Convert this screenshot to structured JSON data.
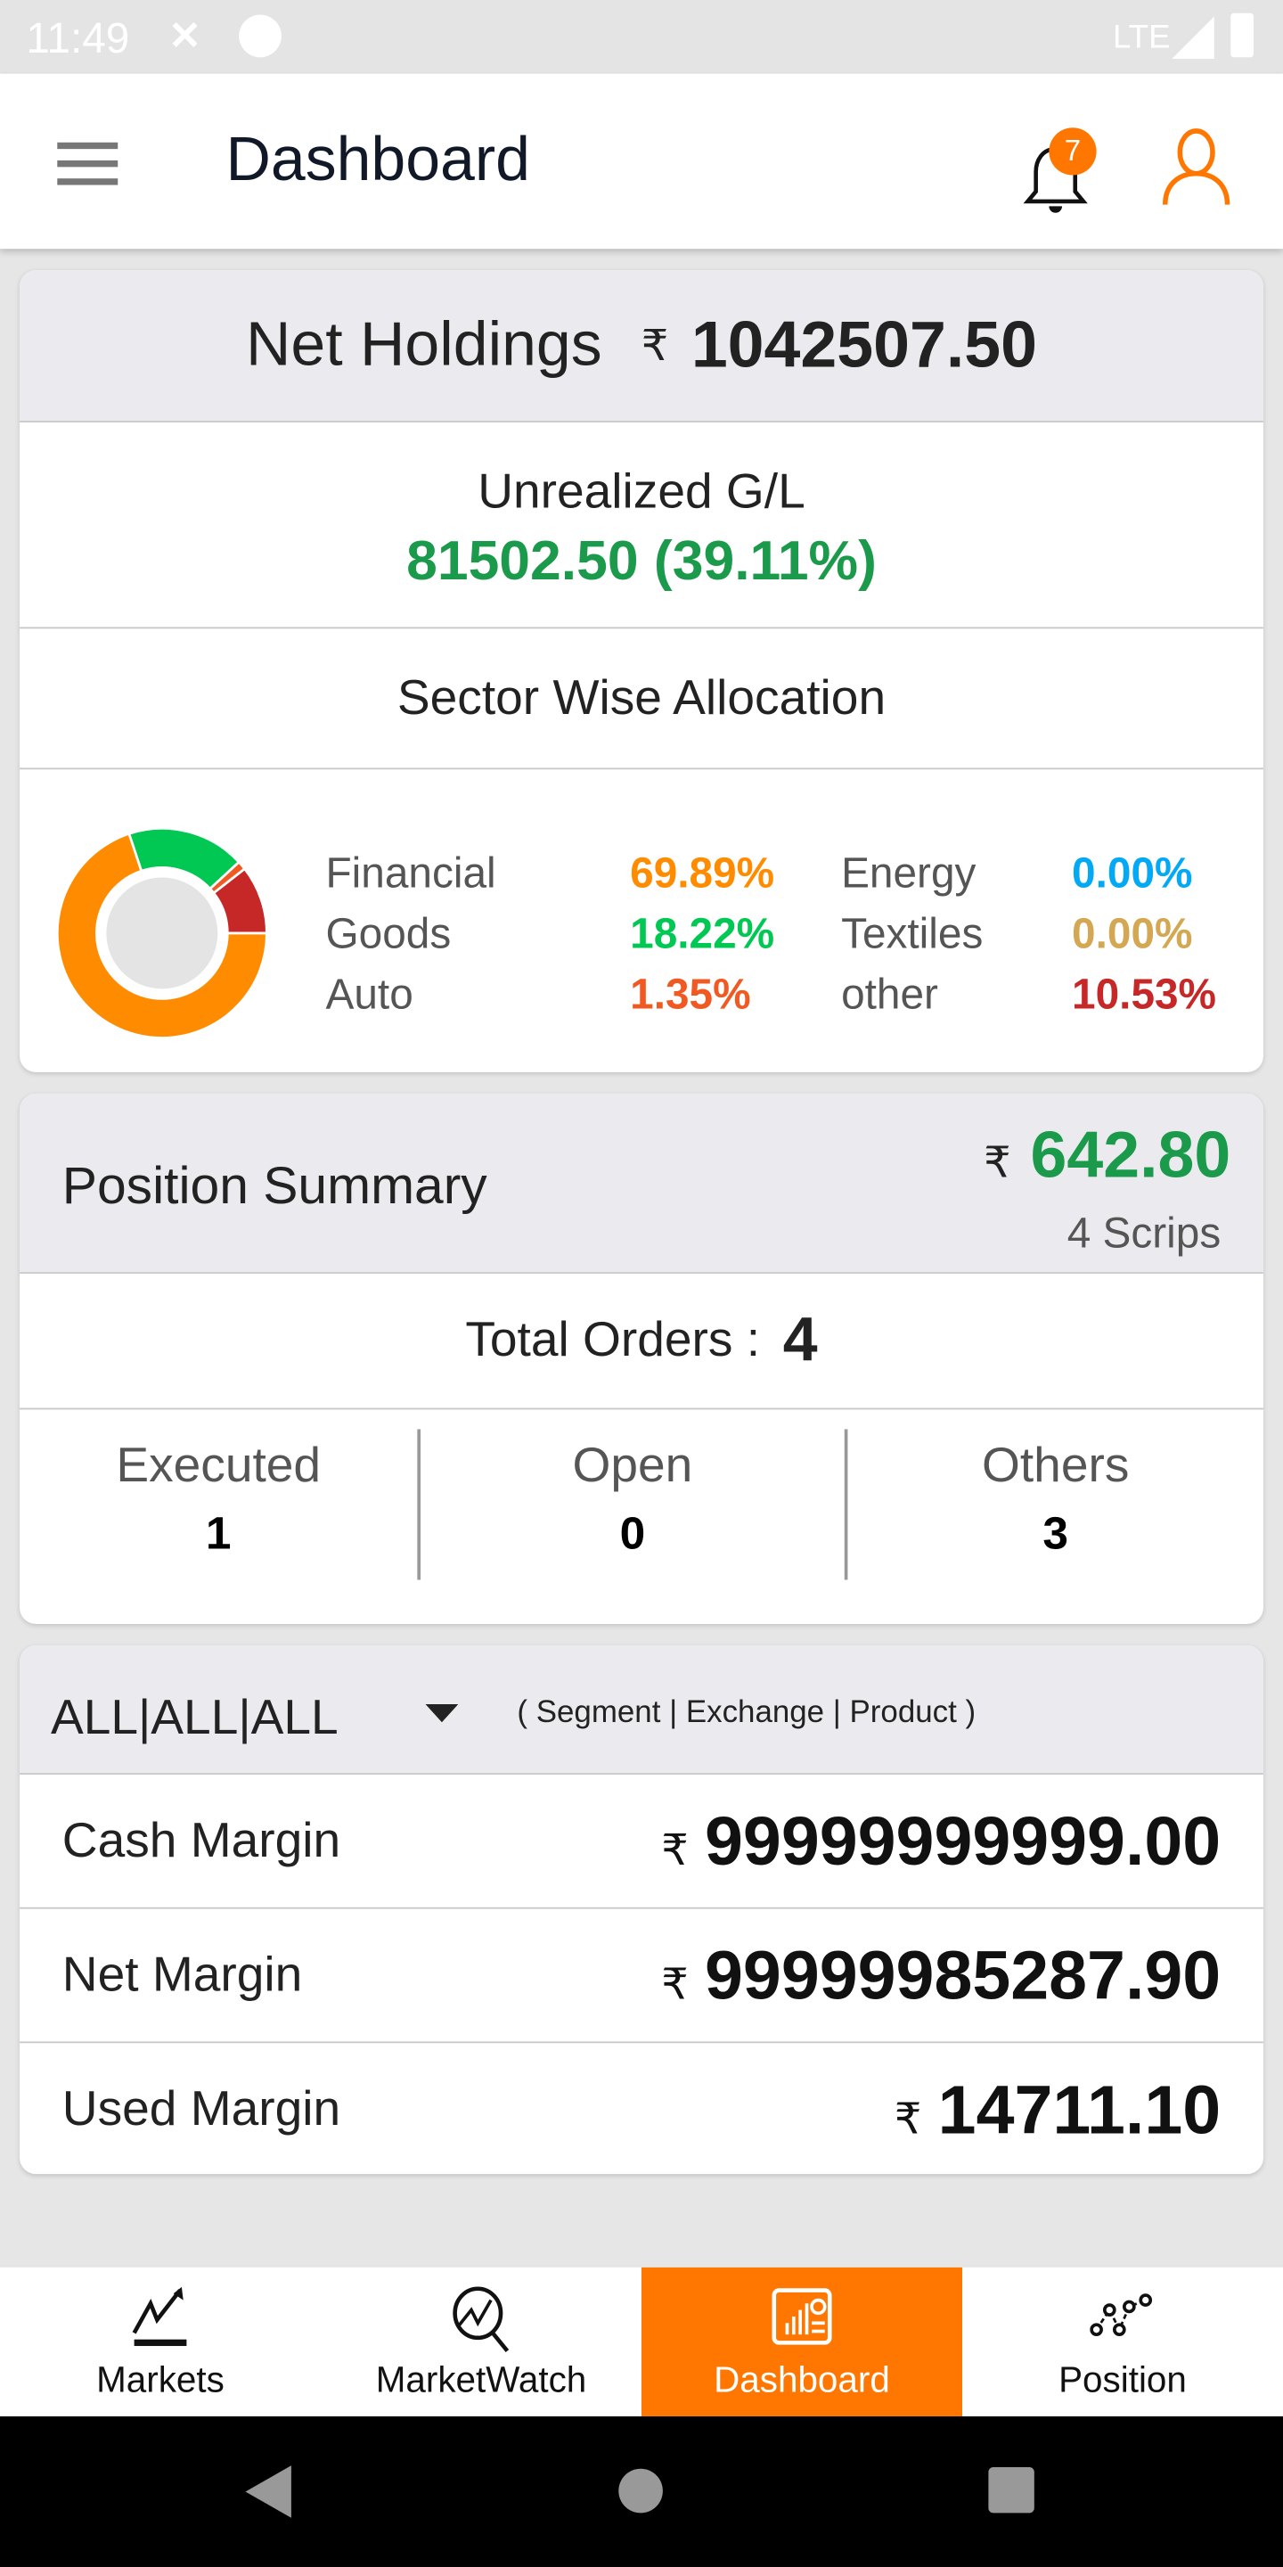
{
  "status_bar": {
    "time": "11:49",
    "network": "LTE"
  },
  "app_bar": {
    "title": "Dashboard",
    "notification_count": "7"
  },
  "holdings": {
    "label": "Net Holdings",
    "currency": "₹",
    "value": "1042507.50",
    "unrealized_label": "Unrealized G/L",
    "unrealized_value": "81502.50 (39.11%)",
    "sector_title": "Sector Wise Allocation",
    "sectors": [
      {
        "name": "Financial",
        "pct": "69.89%",
        "value": 69.89,
        "color": "#ff8c00"
      },
      {
        "name": "Goods",
        "pct": "18.22%",
        "value": 18.22,
        "color": "#00c853"
      },
      {
        "name": "Auto",
        "pct": "1.35%",
        "value": 1.35,
        "color": "#f05a22"
      },
      {
        "name": "Energy",
        "pct": "0.00%",
        "value": 0,
        "color": "#03a9f4"
      },
      {
        "name": "Textiles",
        "pct": "0.00%",
        "value": 0,
        "color": "#d4a853"
      },
      {
        "name": "other",
        "pct": "10.53%",
        "value": 10.53,
        "color": "#c62828"
      }
    ]
  },
  "position": {
    "title": "Position Summary",
    "currency": "₹",
    "value": "642.80",
    "scrips": "4 Scrips",
    "total_orders_label": "Total Orders :",
    "total_orders": "4",
    "stats": [
      {
        "label": "Executed",
        "value": "1"
      },
      {
        "label": "Open",
        "value": "0"
      },
      {
        "label": "Others",
        "value": "3"
      }
    ]
  },
  "margin": {
    "filter_value": "ALL|ALL|ALL",
    "filter_hint": "( Segment | Exchange | Product )",
    "currency": "₹",
    "rows": [
      {
        "label": "Cash Margin",
        "value": "99999999999.00"
      },
      {
        "label": "Net Margin",
        "value": "99999985287.90"
      },
      {
        "label": "Used Margin",
        "value": "14711.10"
      }
    ]
  },
  "bottom_nav": [
    {
      "label": "Markets",
      "icon": "trend-up-icon"
    },
    {
      "label": "MarketWatch",
      "icon": "market-search-icon"
    },
    {
      "label": "Dashboard",
      "icon": "dashboard-icon",
      "active": true
    },
    {
      "label": "Position",
      "icon": "position-icon"
    }
  ],
  "colors": {
    "accent": "#ff7700",
    "gain": "#1a9a4a"
  }
}
